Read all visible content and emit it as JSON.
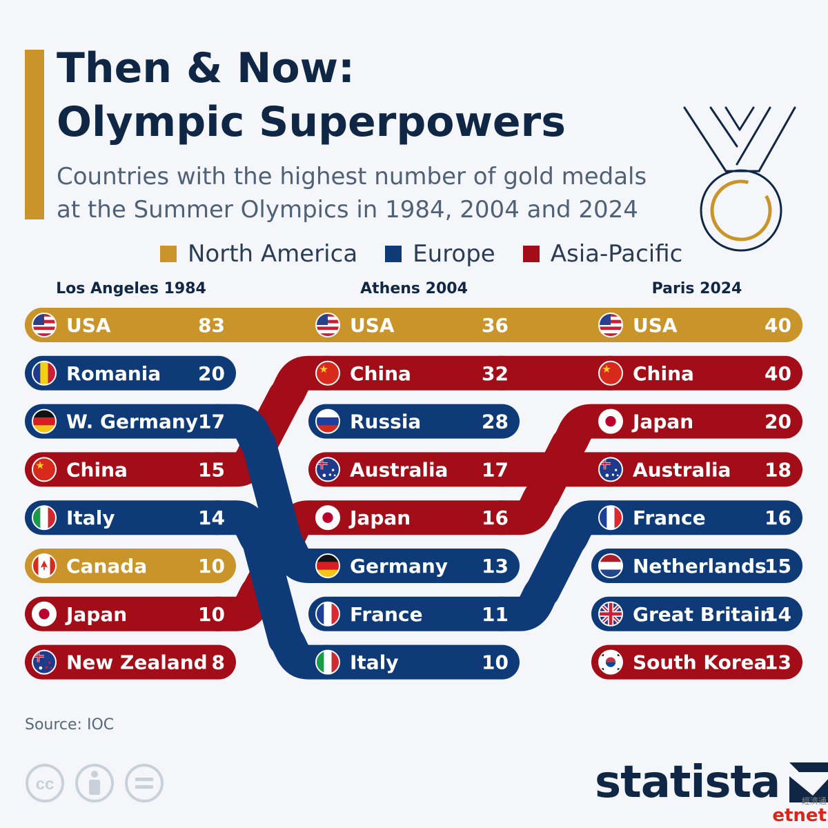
{
  "header": {
    "title_line1": "Then & Now:",
    "title_line2": "Olympic Superpowers",
    "subtitle_line1": "Countries with the highest number of gold medals",
    "subtitle_line2": "at the Summer Olympics in 1984, 2004 and 2024"
  },
  "colors": {
    "North America": "#c9952b",
    "Europe": "#0e3a78",
    "Asia-Pacific": "#a20d17",
    "title": "#0f2744",
    "background": "#f4f6f9"
  },
  "legend": [
    {
      "label": "North America",
      "color": "#c9952b"
    },
    {
      "label": "Europe",
      "color": "#0e3a78"
    },
    {
      "label": "Asia-Pacific",
      "color": "#a20d17"
    }
  ],
  "chart_data": {
    "type": "table",
    "categories": [
      "Los Angeles 1984",
      "Athens 2004",
      "Paris 2024"
    ],
    "series": [
      {
        "name": "Los Angeles 1984",
        "rows": [
          {
            "country": "USA",
            "value": 83,
            "region": "North America",
            "flag": "flag-usa"
          },
          {
            "country": "Romania",
            "value": 20,
            "region": "Europe",
            "flag": "flag-romania"
          },
          {
            "country": "W. Germany",
            "value": 17,
            "region": "Europe",
            "flag": "flag-germany"
          },
          {
            "country": "China",
            "value": 15,
            "region": "Asia-Pacific",
            "flag": "flag-china"
          },
          {
            "country": "Italy",
            "value": 14,
            "region": "Europe",
            "flag": "flag-italy"
          },
          {
            "country": "Canada",
            "value": 10,
            "region": "North America",
            "flag": "flag-canada"
          },
          {
            "country": "Japan",
            "value": 10,
            "region": "Asia-Pacific",
            "flag": "flag-japan"
          },
          {
            "country": "New Zealand",
            "value": 8,
            "region": "Asia-Pacific",
            "flag": "flag-new-zealand"
          }
        ]
      },
      {
        "name": "Athens 2004",
        "rows": [
          {
            "country": "USA",
            "value": 36,
            "region": "North America",
            "flag": "flag-usa"
          },
          {
            "country": "China",
            "value": 32,
            "region": "Asia-Pacific",
            "flag": "flag-china"
          },
          {
            "country": "Russia",
            "value": 28,
            "region": "Europe",
            "flag": "flag-russia"
          },
          {
            "country": "Australia",
            "value": 17,
            "region": "Asia-Pacific",
            "flag": "flag-australia"
          },
          {
            "country": "Japan",
            "value": 16,
            "region": "Asia-Pacific",
            "flag": "flag-japan"
          },
          {
            "country": "Germany",
            "value": 13,
            "region": "Europe",
            "flag": "flag-germany"
          },
          {
            "country": "France",
            "value": 11,
            "region": "Europe",
            "flag": "flag-france"
          },
          {
            "country": "Italy",
            "value": 10,
            "region": "Europe",
            "flag": "flag-italy"
          }
        ]
      },
      {
        "name": "Paris 2024",
        "rows": [
          {
            "country": "USA",
            "value": 40,
            "region": "North America",
            "flag": "flag-usa"
          },
          {
            "country": "China",
            "value": 40,
            "region": "Asia-Pacific",
            "flag": "flag-china"
          },
          {
            "country": "Japan",
            "value": 20,
            "region": "Asia-Pacific",
            "flag": "flag-japan"
          },
          {
            "country": "Australia",
            "value": 18,
            "region": "Asia-Pacific",
            "flag": "flag-australia"
          },
          {
            "country": "France",
            "value": 16,
            "region": "Europe",
            "flag": "flag-france"
          },
          {
            "country": "Netherlands",
            "value": 15,
            "region": "Europe",
            "flag": "flag-netherlands"
          },
          {
            "country": "Great Britain",
            "value": 14,
            "region": "Europe",
            "flag": "flag-great-britain"
          },
          {
            "country": "South Korea",
            "value": 13,
            "region": "Asia-Pacific",
            "flag": "flag-south-korea"
          }
        ]
      }
    ],
    "links": [
      {
        "country": "USA",
        "from": "Los Angeles 1984",
        "to": "Athens 2004"
      },
      {
        "country": "USA",
        "from": "Athens 2004",
        "to": "Paris 2024"
      },
      {
        "country": "China",
        "from": "Los Angeles 1984",
        "to": "Athens 2004"
      },
      {
        "country": "China",
        "from": "Athens 2004",
        "to": "Paris 2024"
      },
      {
        "country": "Japan",
        "from": "Los Angeles 1984",
        "to": "Athens 2004"
      },
      {
        "country": "Japan",
        "from": "Athens 2004",
        "to": "Paris 2024"
      },
      {
        "country": "Australia",
        "from": "Athens 2004",
        "to": "Paris 2024"
      },
      {
        "country": "France",
        "from": "Athens 2004",
        "to": "Paris 2024"
      },
      {
        "country": "W. Germany",
        "from": "Los Angeles 1984",
        "to": "Athens 2004",
        "to_country": "Germany"
      },
      {
        "country": "Italy",
        "from": "Los Angeles 1984",
        "to": "Athens 2004"
      }
    ]
  },
  "footer": {
    "source": "Source: IOC",
    "logo_text": "statista",
    "watermark_cn": "經濟通",
    "watermark_en": "etnet"
  },
  "icons": [
    "medal-icon",
    "cc-icon",
    "attribution-icon",
    "no-derivatives-icon",
    "statista-logo-icon"
  ]
}
